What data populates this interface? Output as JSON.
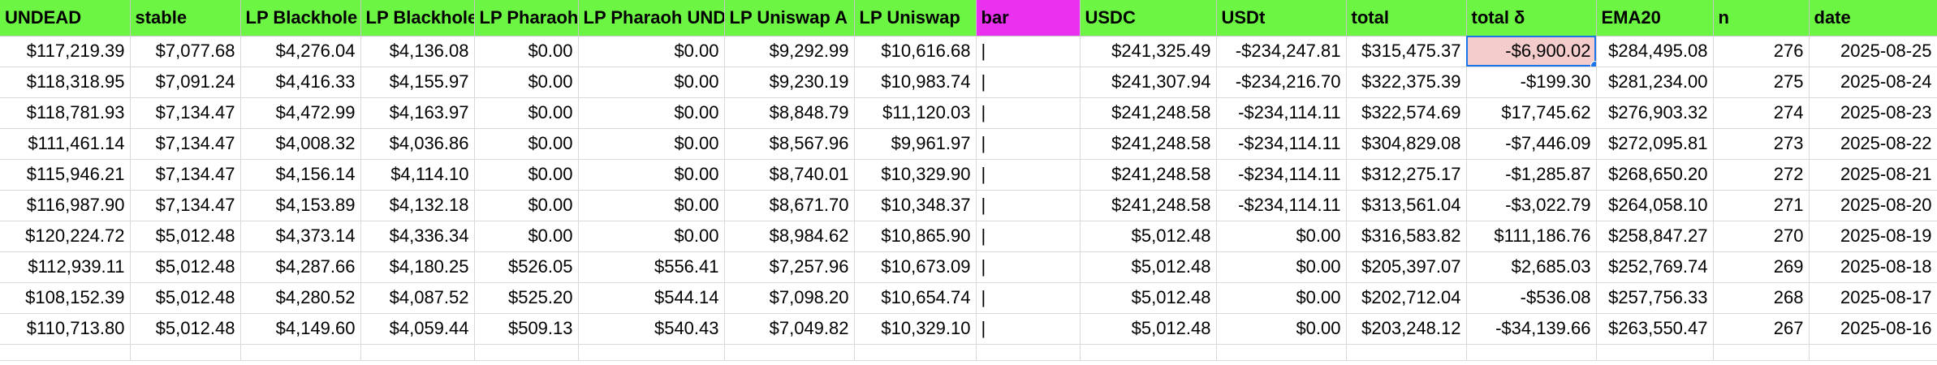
{
  "columns": [
    "UNDEAD",
    "stable",
    "LP Blackhole",
    "LP Blackhole",
    "LP Pharaoh",
    "LP Pharaoh UNDEAD",
    "LP Uniswap A",
    "LP Uniswap",
    "bar",
    "USDC",
    "USDt",
    "total",
    "total δ",
    "EMA20",
    "n",
    "date"
  ],
  "header_colors": {
    "default": "#6cf542",
    "bar": "#ea31f0"
  },
  "selected_cell": {
    "row": 0,
    "column": "total δ",
    "fill": "#f4cccc",
    "border": "#1a73e8"
  },
  "rows": [
    [
      "$117,219.39",
      "$7,077.68",
      "$4,276.04",
      "$4,136.08",
      "$0.00",
      "$0.00",
      "$9,292.99",
      "$10,616.68",
      "|",
      "$241,325.49",
      "-$234,247.81",
      "$315,475.37",
      "-$6,900.02",
      "$284,495.08",
      "276",
      "2025-08-25"
    ],
    [
      "$118,318.95",
      "$7,091.24",
      "$4,416.33",
      "$4,155.97",
      "$0.00",
      "$0.00",
      "$9,230.19",
      "$10,983.74",
      "|",
      "$241,307.94",
      "-$234,216.70",
      "$322,375.39",
      "-$199.30",
      "$281,234.00",
      "275",
      "2025-08-24"
    ],
    [
      "$118,781.93",
      "$7,134.47",
      "$4,472.99",
      "$4,163.97",
      "$0.00",
      "$0.00",
      "$8,848.79",
      "$11,120.03",
      "|",
      "$241,248.58",
      "-$234,114.11",
      "$322,574.69",
      "$17,745.62",
      "$276,903.32",
      "274",
      "2025-08-23"
    ],
    [
      "$111,461.14",
      "$7,134.47",
      "$4,008.32",
      "$4,036.86",
      "$0.00",
      "$0.00",
      "$8,567.96",
      "$9,961.97",
      "|",
      "$241,248.58",
      "-$234,114.11",
      "$304,829.08",
      "-$7,446.09",
      "$272,095.81",
      "273",
      "2025-08-22"
    ],
    [
      "$115,946.21",
      "$7,134.47",
      "$4,156.14",
      "$4,114.10",
      "$0.00",
      "$0.00",
      "$8,740.01",
      "$10,329.90",
      "|",
      "$241,248.58",
      "-$234,114.11",
      "$312,275.17",
      "-$1,285.87",
      "$268,650.20",
      "272",
      "2025-08-21"
    ],
    [
      "$116,987.90",
      "$7,134.47",
      "$4,153.89",
      "$4,132.18",
      "$0.00",
      "$0.00",
      "$8,671.70",
      "$10,348.37",
      "|",
      "$241,248.58",
      "-$234,114.11",
      "$313,561.04",
      "-$3,022.79",
      "$264,058.10",
      "271",
      "2025-08-20"
    ],
    [
      "$120,224.72",
      "$5,012.48",
      "$4,373.14",
      "$4,336.34",
      "$0.00",
      "$0.00",
      "$8,984.62",
      "$10,865.90",
      "|",
      "$5,012.48",
      "$0.00",
      "$316,583.82",
      "$111,186.76",
      "$258,847.27",
      "270",
      "2025-08-19"
    ],
    [
      "$112,939.11",
      "$5,012.48",
      "$4,287.66",
      "$4,180.25",
      "$526.05",
      "$556.41",
      "$7,257.96",
      "$10,673.09",
      "|",
      "$5,012.48",
      "$0.00",
      "$205,397.07",
      "$2,685.03",
      "$252,769.74",
      "269",
      "2025-08-18"
    ],
    [
      "$108,152.39",
      "$5,012.48",
      "$4,280.52",
      "$4,087.52",
      "$525.20",
      "$544.14",
      "$7,098.20",
      "$10,654.74",
      "|",
      "$5,012.48",
      "$0.00",
      "$202,712.04",
      "-$536.08",
      "$257,756.33",
      "268",
      "2025-08-17"
    ],
    [
      "$110,713.80",
      "$5,012.48",
      "$4,149.60",
      "$4,059.44",
      "$509.13",
      "$540.43",
      "$7,049.82",
      "$10,329.10",
      "|",
      "$5,012.48",
      "$0.00",
      "$203,248.12",
      "-$34,139.66",
      "$263,550.47",
      "267",
      "2025-08-16"
    ]
  ]
}
